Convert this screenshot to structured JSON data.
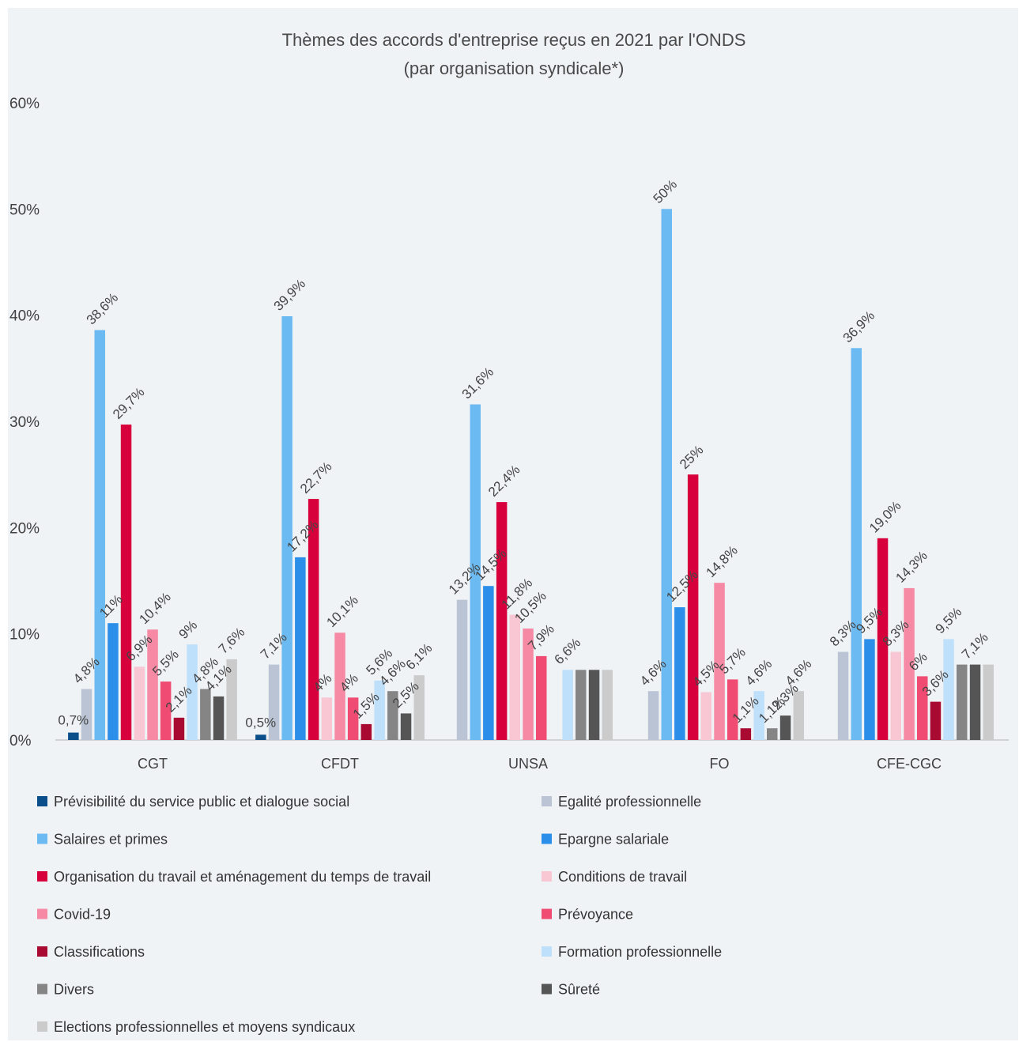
{
  "chart_data": {
    "type": "bar",
    "title": "Thèmes des accords d'entreprise reçus en 2021 par l'ONDS",
    "subtitle": "(par organisation syndicale*)",
    "categories": [
      "CGT",
      "CFDT",
      "UNSA",
      "FO",
      "CFE-CGC"
    ],
    "y_ticks": [
      "0%",
      "10%",
      "20%",
      "30%",
      "40%",
      "50%",
      "60%"
    ],
    "ylim": [
      0,
      60
    ],
    "grid": false,
    "legend_position": "bottom",
    "series": [
      {
        "name": "Prévisibilité du service public et dialogue social",
        "color": "#0b4f8a",
        "values": [
          0.7,
          0.5,
          0,
          0,
          0
        ],
        "labels": [
          "0,7%",
          "0,5%",
          "",
          "",
          ""
        ]
      },
      {
        "name": "Egalité professionnelle",
        "color": "#bac4d4",
        "values": [
          4.8,
          7.1,
          13.2,
          4.6,
          8.3
        ],
        "labels": [
          "4,8%",
          "7,1%",
          "13,2%",
          "4,6%",
          "8,3%"
        ]
      },
      {
        "name": "Salaires et primes",
        "color": "#6cbaf2",
        "values": [
          38.6,
          39.9,
          31.6,
          50,
          36.9
        ],
        "labels": [
          "38,6%",
          "39,9%",
          "31,6%",
          "50%",
          "36,9%"
        ]
      },
      {
        "name": "Epargne salariale",
        "color": "#2b8ee8",
        "values": [
          11,
          17.2,
          14.5,
          12.5,
          9.5
        ],
        "labels": [
          "11%",
          "17,2%",
          "14,5%",
          "12,5%",
          "9,5%"
        ]
      },
      {
        "name": "Organisation du travail et aménagement du temps de travail",
        "color": "#d8003c",
        "values": [
          29.7,
          22.7,
          22.4,
          25,
          19.0
        ],
        "labels": [
          "29,7%",
          "22,7%",
          "22,4%",
          "25%",
          "19,0%"
        ]
      },
      {
        "name": "Conditions de travail",
        "color": "#f9c6d3",
        "values": [
          6.9,
          4,
          11.8,
          4.5,
          8.3
        ],
        "labels": [
          "6,9%",
          "4%",
          "11,8%",
          "4,5%",
          "8,3%"
        ]
      },
      {
        "name": "Covid-19",
        "color": "#f68aa4",
        "values": [
          10.4,
          10.1,
          10.5,
          14.8,
          14.3
        ],
        "labels": [
          "10,4%",
          "10,1%",
          "10,5%",
          "14,8%",
          "14,3%"
        ]
      },
      {
        "name": "Prévoyance",
        "color": "#f04b72",
        "values": [
          5.5,
          4,
          7.9,
          5.7,
          6
        ],
        "labels": [
          "5,5%",
          "4%",
          "7,9%",
          "5,7%",
          "6%"
        ]
      },
      {
        "name": "Classifications",
        "color": "#a80a32",
        "values": [
          2.1,
          1.5,
          0,
          1.1,
          3.6
        ],
        "labels": [
          "2,1%",
          "1,5%",
          "",
          "1,1%",
          "3,6%"
        ]
      },
      {
        "name": "Formation professionnelle",
        "color": "#bfe0fb",
        "values": [
          9,
          5.6,
          6.6,
          4.6,
          9.5
        ],
        "labels": [
          "9%",
          "5,6%",
          "6,6%",
          "4,6%",
          "9,5%"
        ]
      },
      {
        "name": "Divers",
        "color": "#858585",
        "values": [
          4.8,
          4.6,
          6.6,
          1.1,
          7.1
        ],
        "labels": [
          "4,8%",
          "4,6%",
          "",
          "1,1%",
          ""
        ]
      },
      {
        "name": "Sûreté",
        "color": "#555555",
        "values": [
          4.1,
          2.5,
          6.6,
          2.3,
          7.1
        ],
        "labels": [
          "4,1%",
          "2,5%",
          "",
          "2,3%",
          "7,1%"
        ]
      },
      {
        "name": "Elections professionnelles et moyens syndicaux",
        "color": "#cbcbcb",
        "values": [
          7.6,
          6.1,
          6.6,
          4.6,
          7.1
        ],
        "labels": [
          "7,6%",
          "6,1%",
          "",
          "4,6%",
          ""
        ]
      }
    ]
  }
}
